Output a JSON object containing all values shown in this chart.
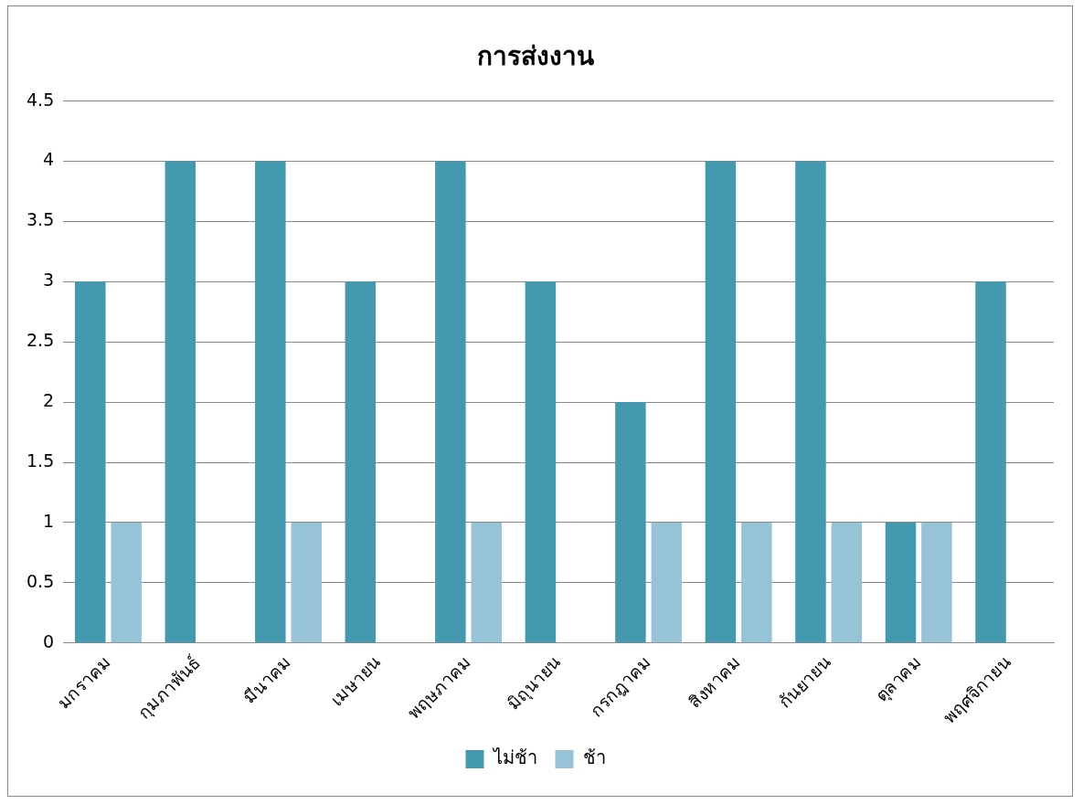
{
  "chart_data": {
    "type": "bar",
    "title": "การส่งงาน",
    "categories": [
      "มกราคม",
      "กุมภาพันธ์",
      "มีนาคม",
      "เมษายน",
      "พฤษภาคม",
      "มิถุนายน",
      "กรกฎาคม",
      "สิงหาคม",
      "กันยายน",
      "ตุลาคม",
      "พฤศจิกายน"
    ],
    "series": [
      {
        "name": "ไม่ช้า",
        "color": "#4399b0",
        "values": [
          3,
          4,
          4,
          3,
          4,
          3,
          2,
          4,
          4,
          1,
          3
        ]
      },
      {
        "name": "ช้า",
        "color": "#96c3d5",
        "values": [
          1,
          null,
          1,
          null,
          1,
          null,
          1,
          1,
          1,
          1,
          null
        ]
      }
    ],
    "ylim": [
      0,
      4.5
    ],
    "yticks": [
      0,
      0.5,
      1,
      1.5,
      2,
      2.5,
      3,
      3.5,
      4,
      4.5
    ],
    "grid": "y",
    "legend": "bottom"
  }
}
